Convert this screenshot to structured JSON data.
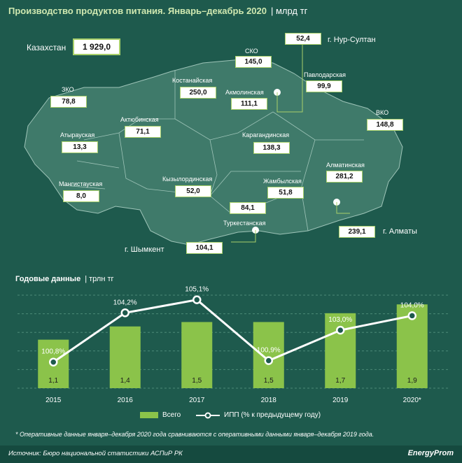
{
  "header": {
    "title": "Производство продуктов питания. Январь–декабрь 2020",
    "unit": "| млрд тг"
  },
  "country": {
    "name": "Казахстан",
    "value": "1 929,0"
  },
  "regions": [
    {
      "name": "ЗКО",
      "value": "78,8"
    },
    {
      "name": "Атырауская",
      "value": "13,3"
    },
    {
      "name": "Мангистауская",
      "value": "8,0"
    },
    {
      "name": "Актюбинская",
      "value": "71,1"
    },
    {
      "name": "Костанайская",
      "value": "250,0"
    },
    {
      "name": "СКО",
      "value": "145,0"
    },
    {
      "name": "Акмолинская",
      "value": "111,1"
    },
    {
      "name": "г. Нур-Султан",
      "value": "52,4"
    },
    {
      "name": "Павлодарская",
      "value": "99,9"
    },
    {
      "name": "ВКО",
      "value": "148,8"
    },
    {
      "name": "Карагандинская",
      "value": "138,3"
    },
    {
      "name": "Кызылординская",
      "value": "52,0"
    },
    {
      "name": "Жамбылская",
      "value": "51,8"
    },
    {
      "name": "Алматинская",
      "value": "281,2"
    },
    {
      "name": "Туркестанская",
      "value": "84,1"
    },
    {
      "name": "г. Алматы",
      "value": "239,1"
    },
    {
      "name": "г. Шымкент",
      "value": "104,1"
    }
  ],
  "annual": {
    "title": "Годовые данные",
    "unit": "| трлн тг"
  },
  "chart_data": {
    "type": "bar",
    "categories": [
      "2015",
      "2016",
      "2017",
      "2018",
      "2019",
      "2020*"
    ],
    "series": [
      {
        "name": "Всего",
        "type": "bar",
        "values": [
          1.1,
          1.4,
          1.5,
          1.5,
          1.7,
          1.9
        ],
        "labels": [
          "1,1",
          "1,4",
          "1,5",
          "1,5",
          "1,7",
          "1,9"
        ]
      },
      {
        "name": "ИПП (% к предыдущему году)",
        "type": "line",
        "values": [
          100.8,
          104.2,
          105.1,
          100.9,
          103.0,
          104.0
        ],
        "labels": [
          "100,8%",
          "104,2%",
          "105,1%",
          "100,9%",
          "103,0%",
          "104,0%"
        ]
      }
    ],
    "bar_ylim": [
      0,
      2.3
    ],
    "line_ylim": [
      99,
      106
    ],
    "grid": true,
    "legend": "bottom",
    "colors": {
      "bar": "#8bc34a",
      "line": "#ffffff"
    }
  },
  "note": "* Оперативные данные января–декабря 2020 года сравниваются с оперативными данными января–декабря 2019 года.",
  "footer": {
    "source": "Источник: Бюро национальной статистики АСПиР РК",
    "brand": "EnergyProm"
  }
}
